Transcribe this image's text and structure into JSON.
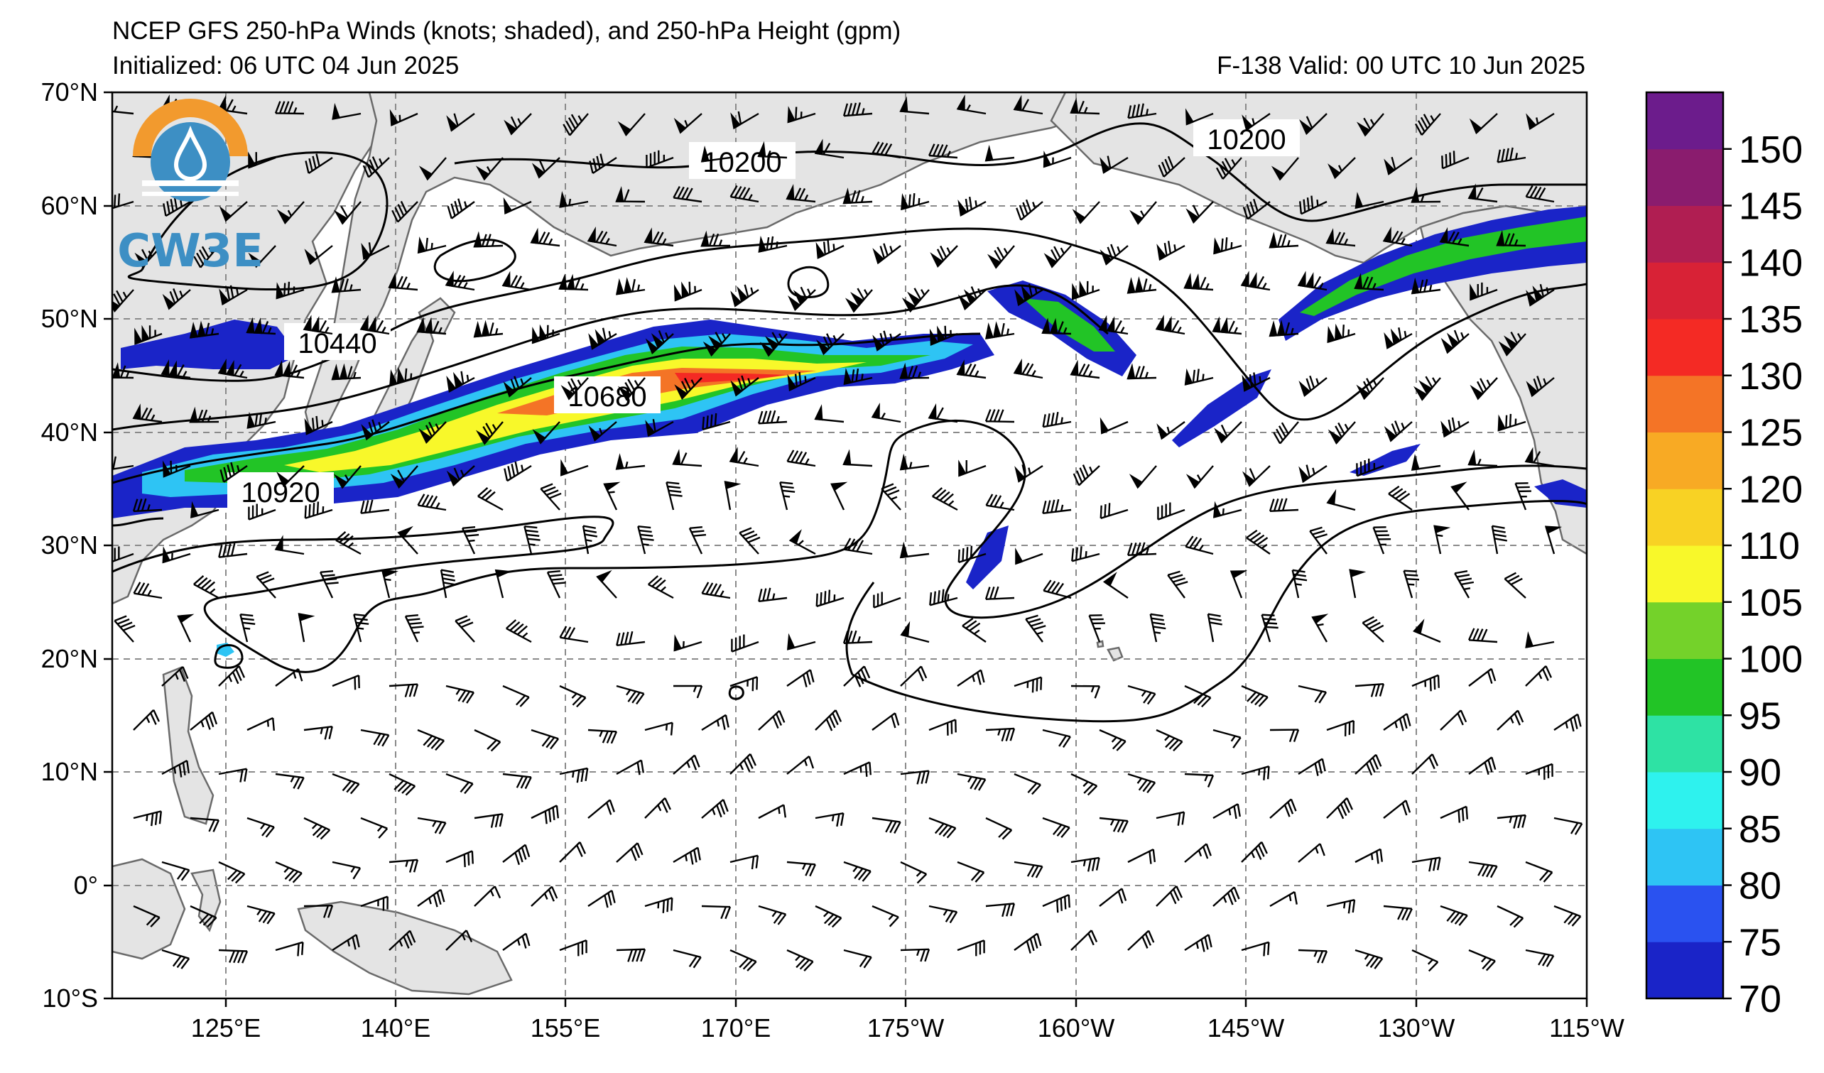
{
  "title": {
    "line1": "NCEP GFS 250-hPa Winds (knots; shaded), and 250-hPa Height (gpm)",
    "initialized": "Initialized: 06 UTC 04 Jun 2025",
    "valid": "F-138  Valid: 00 UTC 10 Jun 2025"
  },
  "logo": {
    "text": "CW3E"
  },
  "map": {
    "lat_labels": [
      "70°N",
      "60°N",
      "50°N",
      "40°N",
      "30°N",
      "20°N",
      "10°N",
      "0°",
      "10°S"
    ],
    "lon_labels": [
      "125°E",
      "140°E",
      "155°E",
      "170°E",
      "175°W",
      "160°W",
      "145°W",
      "130°W",
      "115°W"
    ],
    "contour_labels": [
      {
        "text": "10200",
        "lon": 170,
        "lat": 63.5
      },
      {
        "text": "10200",
        "lon": -146,
        "lat": 65.5
      },
      {
        "text": "10440",
        "lon": 134,
        "lat": 48
      },
      {
        "text": "10680",
        "lon": 159,
        "lat": 42.8
      },
      {
        "text": "10920",
        "lon": 129,
        "lat": 35.2
      }
    ]
  },
  "colorbar": {
    "levels": [
      70,
      75,
      80,
      85,
      90,
      95,
      100,
      105,
      110,
      120,
      125,
      130,
      135,
      140,
      145,
      150
    ],
    "labels": [
      "70",
      "75",
      "80",
      "85",
      "90",
      "95",
      "100",
      "105",
      "110",
      "120",
      "125",
      "130",
      "135",
      "140",
      "145",
      "150"
    ],
    "colors": [
      "#1a24c8",
      "#2a52f0",
      "#2ec4f4",
      "#2ef2ee",
      "#2ee2a4",
      "#22c426",
      "#74d22a",
      "#f8f82a",
      "#f8d224",
      "#f8aa24",
      "#f47426",
      "#f42a24",
      "#d82236",
      "#b01e52",
      "#8a1c6e",
      "#6c1c8c"
    ]
  },
  "colors": {
    "land": "#e4e4e4",
    "coast": "#6a6a6a",
    "grid": "#8a8a8a",
    "contour": "#000000"
  }
}
